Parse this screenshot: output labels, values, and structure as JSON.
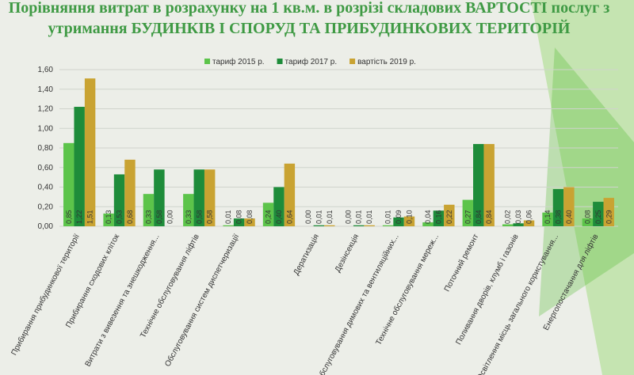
{
  "chart_data": {
    "type": "bar",
    "title": "Порівняння витрат в розрахунку на 1 кв.м. в розрізі складових ВАРТОСТІ послуг з",
    "subtitle": "утримання БУДИНКІВ І СПОРУД ТА ПРИБУДИНКОВИХ ТЕРИТОРІЙ",
    "categories": [
      "Прибирання прибудинкової території",
      "Прибирання сходових клітoк",
      "Витрати з вивезення та знешкодження...",
      "Технічне обслуговування ліфтів",
      "Обслуговування систем диспетчеризації",
      null,
      "Дератизація",
      "Дезінсекція",
      "Обслуговування димових та вентиляційних...",
      "Технічне обслуговування мереж...",
      "Поточний ремонт",
      "Поливання дворів, клумб і газонів",
      "Освітлення місць загального користування...",
      "Енергопостачання для ліфтів"
    ],
    "series": [
      {
        "name": "тариф 2015 р.",
        "color": "#5cc44a",
        "values": [
          0.85,
          0.13,
          0.33,
          0.33,
          0.01,
          0.24,
          0.0,
          0.0,
          0.01,
          0.04,
          0.27,
          0.02,
          0.14,
          0.08
        ],
        "value_labels": [
          "0,85",
          "0,13",
          "0,33",
          "0,33",
          "0,01",
          "0,24",
          "0,00",
          "0,00",
          "0,01",
          "0,04",
          "0,27",
          "0,02",
          "0,14",
          "0,08"
        ]
      },
      {
        "name": "тариф 2017 р.",
        "color": "#1e8c3a",
        "values": [
          1.22,
          0.53,
          0.58,
          0.58,
          0.08,
          0.4,
          0.01,
          0.01,
          0.09,
          0.16,
          0.84,
          0.03,
          0.38,
          0.25
        ],
        "value_labels": [
          "1,22",
          "0,53",
          "0,58",
          "0,58",
          "0,08",
          "0,40",
          "0,01",
          "0,01",
          "0,09",
          "0,16",
          "0,84",
          "0,03",
          "0,38",
          "0,25"
        ]
      },
      {
        "name": "вартість 2019 р.",
        "color": "#c9a332",
        "values": [
          1.51,
          0.68,
          0.0,
          0.58,
          0.08,
          0.64,
          0.01,
          0.01,
          0.1,
          0.22,
          0.84,
          0.06,
          0.4,
          0.29
        ],
        "value_labels": [
          "1,51",
          "0,68",
          "0,00",
          "0,58",
          "0,08",
          "0,64",
          "0,01",
          "0,01",
          "0,10",
          "0,22",
          "0,84",
          "0,06",
          "0,40",
          "0,29"
        ]
      }
    ],
    "ylim": [
      0,
      1.6
    ],
    "yticks": [
      {
        "value": 0,
        "label": "0,00"
      },
      {
        "value": 0.2,
        "label": "0,20"
      },
      {
        "value": 0.4,
        "label": "0,40"
      },
      {
        "value": 0.6,
        "label": "0,60"
      },
      {
        "value": 0.8,
        "label": "0,80"
      },
      {
        "value": 1.0,
        "label": "1,00"
      },
      {
        "value": 1.2,
        "label": "1,20"
      },
      {
        "value": 1.4,
        "label": "1,40"
      },
      {
        "value": 1.6,
        "label": "1,60"
      }
    ],
    "grid": true,
    "legend": "top"
  }
}
